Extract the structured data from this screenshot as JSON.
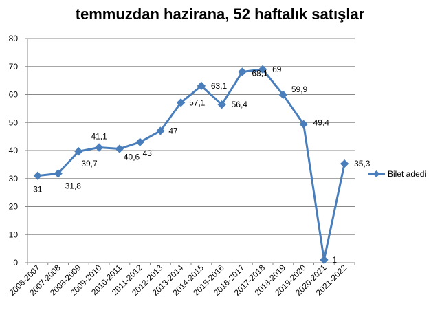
{
  "chart_data": {
    "type": "line",
    "title": "temmuzdan hazirana, 52 haftalık satışlar",
    "xlabel": "",
    "ylabel": "",
    "ylim": [
      0,
      80
    ],
    "yticks": [
      "0",
      "10",
      "20",
      "30",
      "40",
      "50",
      "60",
      "70",
      "80"
    ],
    "grid": "horizontal",
    "legend_position": "right",
    "color": "#4a7ebb",
    "categories": [
      "2006-2007",
      "2007-2008",
      "2008-2009",
      "2009-2010",
      "2010-2011",
      "2011-2012",
      "2012-2013",
      "2013-2014",
      "2014-2015",
      "2015-2016",
      "2016-2017",
      "2017-2018",
      "2018-2019",
      "2019-2020",
      "2020-2021",
      "2021-2022"
    ],
    "series": [
      {
        "name": "Bilet adedi",
        "values": [
          31,
          31.8,
          39.7,
          41.1,
          40.6,
          43,
          47,
          57.1,
          63.1,
          56.4,
          68.1,
          69,
          59.9,
          49.4,
          1,
          35.3
        ],
        "labels": [
          "31",
          "31,8",
          "39,7",
          "41,1",
          "40,6",
          "43",
          "47",
          "57,1",
          "63,1",
          "56,4",
          "68,1",
          "69",
          "59,9",
          "49,4",
          "1",
          "35,3"
        ]
      }
    ]
  }
}
